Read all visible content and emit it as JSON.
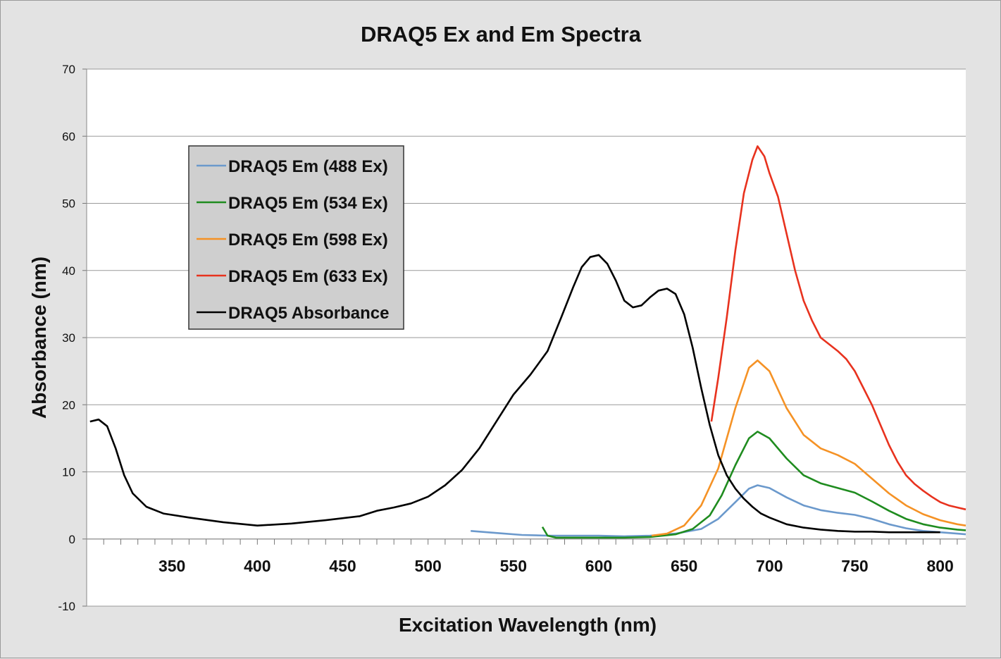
{
  "chart_data": {
    "type": "line",
    "title": "DRAQ5 Ex and Em Spectra",
    "xlabel": "Excitation Wavelength (nm)",
    "ylabel": "Absorbance (nm)",
    "xlim": [
      300,
      815
    ],
    "ylim": [
      -10,
      70
    ],
    "x_ticks": [
      350,
      400,
      450,
      500,
      550,
      600,
      650,
      700,
      750,
      800
    ],
    "y_ticks": [
      -10,
      0,
      10,
      20,
      30,
      40,
      50,
      60,
      70
    ],
    "grid": "horizontal",
    "legend_position": "upper-left",
    "series": [
      {
        "name": "DRAQ5 Em (488 Ex)",
        "color": "#6b99cc",
        "x": [
          525,
          540,
          555,
          570,
          585,
          600,
          615,
          630,
          645,
          660,
          670,
          680,
          688,
          693,
          700,
          710,
          720,
          730,
          740,
          750,
          760,
          770,
          780,
          790,
          800,
          810,
          815
        ],
        "y": [
          1.2,
          0.9,
          0.6,
          0.5,
          0.5,
          0.5,
          0.4,
          0.5,
          0.8,
          1.5,
          3.0,
          5.5,
          7.5,
          8.0,
          7.6,
          6.2,
          5.0,
          4.3,
          3.9,
          3.6,
          3.0,
          2.2,
          1.6,
          1.2,
          1.0,
          0.8,
          0.7
        ]
      },
      {
        "name": "DRAQ5 Em (534 Ex)",
        "color": "#1f8c1f",
        "x": [
          567,
          570,
          575,
          585,
          600,
          615,
          630,
          645,
          655,
          665,
          672,
          680,
          688,
          693,
          700,
          710,
          720,
          730,
          740,
          750,
          760,
          770,
          780,
          790,
          800,
          810,
          815
        ],
        "y": [
          1.8,
          0.5,
          0.2,
          0.2,
          0.2,
          0.2,
          0.3,
          0.7,
          1.5,
          3.5,
          6.5,
          11.0,
          15.0,
          16.0,
          15.0,
          12.0,
          9.5,
          8.3,
          7.6,
          6.9,
          5.6,
          4.2,
          3.0,
          2.2,
          1.7,
          1.4,
          1.3
        ]
      },
      {
        "name": "DRAQ5 Em (598 Ex)",
        "color": "#f59225",
        "x": [
          631,
          640,
          650,
          660,
          670,
          680,
          688,
          693,
          700,
          710,
          720,
          730,
          740,
          750,
          760,
          770,
          780,
          790,
          800,
          810,
          815
        ],
        "y": [
          0.5,
          0.8,
          2.0,
          5.0,
          10.5,
          19.5,
          25.5,
          26.6,
          25.0,
          19.5,
          15.5,
          13.5,
          12.5,
          11.2,
          9.0,
          6.8,
          5.0,
          3.7,
          2.8,
          2.2,
          2.0
        ]
      },
      {
        "name": "DRAQ5 Em (633 Ex)",
        "color": "#e8321e",
        "x": [
          666,
          670,
          675,
          680,
          685,
          690,
          693,
          697,
          700,
          705,
          710,
          715,
          720,
          725,
          730,
          735,
          740,
          745,
          750,
          755,
          760,
          765,
          770,
          775,
          780,
          785,
          790,
          795,
          800,
          805,
          810,
          815
        ],
        "y": [
          17.5,
          24.0,
          33.0,
          43.0,
          51.5,
          56.5,
          58.5,
          57.0,
          54.5,
          51.0,
          45.5,
          40.0,
          35.5,
          32.5,
          30.0,
          29.0,
          28.0,
          26.8,
          25.0,
          22.5,
          20.0,
          17.0,
          14.0,
          11.5,
          9.5,
          8.2,
          7.2,
          6.3,
          5.5,
          5.0,
          4.7,
          4.4
        ]
      },
      {
        "name": "DRAQ5 Absorbance",
        "color": "#000000",
        "x": [
          302,
          307,
          312,
          317,
          322,
          327,
          335,
          345,
          360,
          380,
          400,
          420,
          440,
          460,
          470,
          480,
          490,
          500,
          510,
          520,
          530,
          540,
          550,
          560,
          570,
          578,
          585,
          590,
          595,
          600,
          605,
          610,
          615,
          620,
          625,
          630,
          635,
          640,
          645,
          650,
          655,
          660,
          665,
          670,
          675,
          680,
          685,
          690,
          695,
          700,
          710,
          720,
          730,
          740,
          750,
          760,
          770,
          780,
          790,
          800
        ],
        "y": [
          17.5,
          17.8,
          16.8,
          13.5,
          9.5,
          6.8,
          4.8,
          3.8,
          3.2,
          2.5,
          2.0,
          2.3,
          2.8,
          3.4,
          4.2,
          4.7,
          5.3,
          6.3,
          8.0,
          10.3,
          13.5,
          17.5,
          21.5,
          24.5,
          28.0,
          33.0,
          37.5,
          40.5,
          42.0,
          42.3,
          41.0,
          38.5,
          35.5,
          34.5,
          34.8,
          36.0,
          37.0,
          37.3,
          36.5,
          33.5,
          28.5,
          22.5,
          17.0,
          12.5,
          9.5,
          7.5,
          6.0,
          4.8,
          3.8,
          3.2,
          2.2,
          1.7,
          1.4,
          1.2,
          1.1,
          1.1,
          1.0,
          1.0,
          1.0,
          1.0
        ]
      }
    ]
  }
}
